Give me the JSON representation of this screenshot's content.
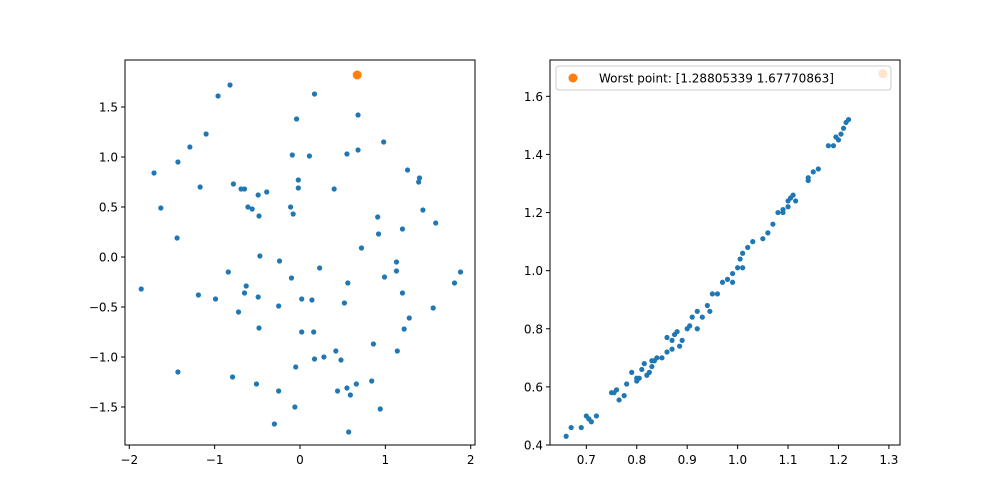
{
  "colors": {
    "base": "#1f77b4",
    "highlight": "#ff7f0e"
  },
  "chart_data": [
    {
      "type": "scatter",
      "title": "",
      "xlabel": "",
      "ylabel": "",
      "xlim": [
        -2.05,
        2.05
      ],
      "ylim": [
        -1.88,
        1.97
      ],
      "xticks": [
        -2,
        -1,
        0,
        1,
        2
      ],
      "yticks": [
        -1.5,
        -1.0,
        -0.5,
        0.0,
        0.5,
        1.0,
        1.5
      ],
      "xtick_labels": [
        "−2",
        "−1",
        "0",
        "1",
        "2"
      ],
      "ytick_labels": [
        "−1.5",
        "−1.0",
        "−0.5",
        "0.0",
        "0.5",
        "1.0",
        "1.5"
      ],
      "grid": false,
      "series": [
        {
          "points": [
            [
              -1.71,
              0.84
            ],
            [
              -1.63,
              0.49
            ],
            [
              -1.43,
              0.95
            ],
            [
              -1.29,
              1.1
            ],
            [
              -1.1,
              1.23
            ],
            [
              -0.96,
              1.61
            ],
            [
              -0.82,
              1.72
            ],
            [
              -1.17,
              0.7
            ],
            [
              -0.78,
              0.73
            ],
            [
              -0.69,
              0.68
            ],
            [
              -0.65,
              0.68
            ],
            [
              -0.61,
              0.5
            ],
            [
              -0.56,
              0.48
            ],
            [
              -0.49,
              0.62
            ],
            [
              -0.39,
              0.65
            ],
            [
              -0.48,
              0.41
            ],
            [
              -1.44,
              0.19
            ],
            [
              -0.47,
              0.01
            ],
            [
              -0.24,
              -0.04
            ],
            [
              -0.1,
              -0.21
            ],
            [
              -0.84,
              -0.15
            ],
            [
              -0.63,
              -0.29
            ],
            [
              -0.65,
              -0.36
            ],
            [
              -0.49,
              -0.4
            ],
            [
              -1.19,
              -0.38
            ],
            [
              -0.99,
              -0.42
            ],
            [
              -0.72,
              -0.55
            ],
            [
              -0.25,
              -0.49
            ],
            [
              -1.86,
              -0.32
            ],
            [
              -0.48,
              -0.71
            ],
            [
              -1.43,
              -1.15
            ],
            [
              -0.79,
              -1.2
            ],
            [
              -0.51,
              -1.27
            ],
            [
              -0.25,
              -1.34
            ],
            [
              -0.3,
              -1.67
            ],
            [
              -0.05,
              -1.1
            ],
            [
              -0.06,
              -1.5
            ],
            [
              0.02,
              -0.42
            ],
            [
              0.14,
              -0.43
            ],
            [
              0.02,
              -0.75
            ],
            [
              0.16,
              -0.75
            ],
            [
              0.17,
              -1.02
            ],
            [
              0.28,
              -1.0
            ],
            [
              0.42,
              -0.94
            ],
            [
              0.48,
              -1.03
            ],
            [
              0.23,
              -0.11
            ],
            [
              0.52,
              -0.46
            ],
            [
              0.56,
              -0.26
            ],
            [
              0.44,
              -1.34
            ],
            [
              0.55,
              -1.31
            ],
            [
              0.59,
              -1.38
            ],
            [
              0.66,
              -1.27
            ],
            [
              0.84,
              -1.24
            ],
            [
              0.86,
              -0.87
            ],
            [
              0.94,
              -1.52
            ],
            [
              0.57,
              -1.75
            ],
            [
              -0.11,
              0.5
            ],
            [
              -0.08,
              0.43
            ],
            [
              -0.02,
              0.77
            ],
            [
              -0.02,
              0.69
            ],
            [
              0.4,
              0.68
            ],
            [
              -0.09,
              1.02
            ],
            [
              0.11,
              1.01
            ],
            [
              0.17,
              1.63
            ],
            [
              -0.04,
              1.38
            ],
            [
              0.55,
              1.03
            ],
            [
              0.68,
              1.07
            ],
            [
              0.68,
              1.42
            ],
            [
              0.98,
              1.15
            ],
            [
              0.72,
              0.09
            ],
            [
              0.92,
              0.23
            ],
            [
              0.91,
              0.4
            ],
            [
              1.2,
              0.28
            ],
            [
              1.26,
              0.87
            ],
            [
              1.4,
              0.79
            ],
            [
              1.39,
              0.75
            ],
            [
              1.44,
              0.47
            ],
            [
              1.59,
              0.34
            ],
            [
              0.99,
              -0.2
            ],
            [
              1.13,
              -0.05
            ],
            [
              1.13,
              -0.14
            ],
            [
              1.2,
              -0.36
            ],
            [
              1.22,
              -0.72
            ],
            [
              1.28,
              -0.61
            ],
            [
              1.14,
              -0.94
            ],
            [
              1.56,
              -0.51
            ],
            [
              1.81,
              -0.26
            ],
            [
              1.88,
              -0.15
            ]
          ]
        },
        {
          "points": [
            [
              0.67,
              1.82
            ]
          ]
        }
      ]
    },
    {
      "type": "scatter",
      "title": "",
      "xlabel": "",
      "ylabel": "",
      "xlim": [
        0.628,
        1.322
      ],
      "ylim": [
        0.4,
        1.725
      ],
      "xticks": [
        0.7,
        0.8,
        0.9,
        1.0,
        1.1,
        1.2,
        1.3
      ],
      "yticks": [
        0.4,
        0.6,
        0.8,
        1.0,
        1.2,
        1.4,
        1.6
      ],
      "xtick_labels": [
        "0.7",
        "0.8",
        "0.9",
        "1.0",
        "1.1",
        "1.2",
        "1.3"
      ],
      "ytick_labels": [
        "0.4",
        "0.6",
        "0.8",
        "1.0",
        "1.2",
        "1.4",
        "1.6"
      ],
      "grid": false,
      "legend": {
        "position": "upper-left",
        "entries": [
          "Worst point: [1.28805339 1.67770863]"
        ]
      },
      "series": [
        {
          "points": [
            [
              0.66,
              0.43
            ],
            [
              0.67,
              0.46
            ],
            [
              0.69,
              0.46
            ],
            [
              0.7,
              0.5
            ],
            [
              0.705,
              0.49
            ],
            [
              0.71,
              0.48
            ],
            [
              0.72,
              0.5
            ],
            [
              0.75,
              0.58
            ],
            [
              0.755,
              0.58
            ],
            [
              0.76,
              0.59
            ],
            [
              0.765,
              0.555
            ],
            [
              0.775,
              0.57
            ],
            [
              0.78,
              0.61
            ],
            [
              0.79,
              0.65
            ],
            [
              0.8,
              0.62
            ],
            [
              0.805,
              0.63
            ],
            [
              0.81,
              0.66
            ],
            [
              0.815,
              0.68
            ],
            [
              0.82,
              0.64
            ],
            [
              0.825,
              0.65
            ],
            [
              0.83,
              0.67
            ],
            [
              0.835,
              0.69
            ],
            [
              0.84,
              0.7
            ],
            [
              0.85,
              0.7
            ],
            [
              0.86,
              0.72
            ],
            [
              0.87,
              0.73
            ],
            [
              0.875,
              0.78
            ],
            [
              0.88,
              0.79
            ],
            [
              0.885,
              0.74
            ],
            [
              0.89,
              0.76
            ],
            [
              0.9,
              0.8
            ],
            [
              0.905,
              0.81
            ],
            [
              0.91,
              0.84
            ],
            [
              0.92,
              0.8
            ],
            [
              0.93,
              0.84
            ],
            [
              0.94,
              0.88
            ],
            [
              0.945,
              0.86
            ],
            [
              0.95,
              0.92
            ],
            [
              0.96,
              0.92
            ],
            [
              0.97,
              0.96
            ],
            [
              0.98,
              0.97
            ],
            [
              0.99,
              0.96
            ],
            [
              1.0,
              1.01
            ],
            [
              1.005,
              1.04
            ],
            [
              1.01,
              1.06
            ],
            [
              1.02,
              1.08
            ],
            [
              1.03,
              1.1
            ],
            [
              1.05,
              1.11
            ],
            [
              1.06,
              1.13
            ],
            [
              1.07,
              1.16
            ],
            [
              1.08,
              1.2
            ],
            [
              1.09,
              1.21
            ],
            [
              1.1,
              1.22
            ],
            [
              1.105,
              1.25
            ],
            [
              1.11,
              1.26
            ],
            [
              1.115,
              1.24
            ],
            [
              1.14,
              1.31
            ],
            [
              1.15,
              1.34
            ],
            [
              1.16,
              1.35
            ],
            [
              1.19,
              1.43
            ],
            [
              1.195,
              1.46
            ],
            [
              1.2,
              1.45
            ],
            [
              1.205,
              1.47
            ],
            [
              1.21,
              1.49
            ],
            [
              1.215,
              1.51
            ],
            [
              1.22,
              1.52
            ],
            [
              0.86,
              0.77
            ],
            [
              0.87,
              0.76
            ],
            [
              0.83,
              0.69
            ],
            [
              0.8,
              0.63
            ],
            [
              0.92,
              0.86
            ],
            [
              1.09,
              1.2
            ],
            [
              1.1,
              1.24
            ],
            [
              1.18,
              1.43
            ],
            [
              1.14,
              1.32
            ],
            [
              1.01,
              1.01
            ],
            [
              0.99,
              0.99
            ]
          ]
        },
        {
          "name": "Worst point: [1.28805339 1.67770863]",
          "points": [
            [
              1.288,
              1.678
            ]
          ]
        }
      ]
    }
  ]
}
